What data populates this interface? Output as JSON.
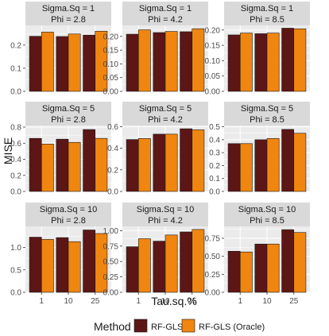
{
  "chart_data": {
    "type": "bar",
    "layout": "facet-grid-3x3",
    "xlabel": "Tau.sq.%",
    "ylabel": "MISE",
    "categories": [
      "1",
      "10",
      "25"
    ],
    "legend": {
      "title": "Method",
      "position": "bottom",
      "entries": [
        "RF-GLS",
        "RF-GLS (Oracle)"
      ]
    },
    "colors": {
      "RF-GLS": "#5c1616",
      "RF-GLS (Oracle)": "#f0860f",
      "panel_bg": "#ebebeb",
      "strip_bg": "#d9d9d9",
      "grid": "#ffffff",
      "text": "#1a1a1a",
      "tick_label": "#4d4d4d"
    },
    "grid": true,
    "panels": [
      {
        "strip": [
          "Sigma.Sq = 1",
          "Phi = 2.8"
        ],
        "ylim": [
          0,
          0.285
        ],
        "yticks": [
          0.0,
          0.1,
          0.2
        ],
        "ytick_labels": [
          "0.0",
          "0.1",
          "0.2"
        ],
        "series": [
          {
            "name": "RF-GLS",
            "values": [
              0.238,
              0.237,
              0.243
            ]
          },
          {
            "name": "RF-GLS (Oracle)",
            "values": [
              0.256,
              0.248,
              0.26
            ]
          }
        ]
      },
      {
        "strip": [
          "Sigma.Sq = 1",
          "Phi = 4.2"
        ],
        "ylim": [
          0,
          0.24
        ],
        "yticks": [
          0.0,
          0.05,
          0.1,
          0.15,
          0.2
        ],
        "ytick_labels": [
          "0.00",
          "0.05",
          "0.10",
          "0.15",
          "0.20"
        ],
        "series": [
          {
            "name": "RF-GLS",
            "values": [
              0.208,
              0.214,
              0.217
            ]
          },
          {
            "name": "RF-GLS (Oracle)",
            "values": [
              0.224,
              0.218,
              0.228
            ]
          }
        ]
      },
      {
        "strip": [
          "Sigma.Sq = 1",
          "Phi = 8.5"
        ],
        "ylim": [
          0,
          0.215
        ],
        "yticks": [
          0.0,
          0.05,
          0.1,
          0.15,
          0.2
        ],
        "ytick_labels": [
          "0.00",
          "0.05",
          "0.10",
          "0.15",
          "0.20"
        ],
        "series": [
          {
            "name": "RF-GLS",
            "values": [
              0.184,
              0.188,
              0.206
            ]
          },
          {
            "name": "RF-GLS (Oracle)",
            "values": [
              0.19,
              0.19,
              0.204
            ]
          }
        ]
      },
      {
        "strip": [
          "Sigma.Sq = 5",
          "Phi = 2.8"
        ],
        "ylim": [
          0,
          0.82
        ],
        "yticks": [
          0.0,
          0.2,
          0.4,
          0.6,
          0.8
        ],
        "ytick_labels": [
          "0.0",
          "0.2",
          "0.4",
          "0.6",
          "0.8"
        ],
        "series": [
          {
            "name": "RF-GLS",
            "values": [
              0.66,
              0.65,
              0.77
            ]
          },
          {
            "name": "RF-GLS (Oracle)",
            "values": [
              0.59,
              0.61,
              0.66
            ]
          }
        ]
      },
      {
        "strip": [
          "Sigma.Sq = 5",
          "Phi = 4.2"
        ],
        "ylim": [
          0,
          0.61
        ],
        "yticks": [
          0.0,
          0.2,
          0.4,
          0.6
        ],
        "ytick_labels": [
          "0.0",
          "0.2",
          "0.4",
          "0.6"
        ],
        "series": [
          {
            "name": "RF-GLS",
            "values": [
              0.48,
              0.53,
              0.58
            ]
          },
          {
            "name": "RF-GLS (Oracle)",
            "values": [
              0.49,
              0.53,
              0.57
            ]
          }
        ]
      },
      {
        "strip": [
          "Sigma.Sq = 5",
          "Phi = 8.5"
        ],
        "ylim": [
          0,
          0.51
        ],
        "yticks": [
          0.0,
          0.1,
          0.2,
          0.3,
          0.4,
          0.5
        ],
        "ytick_labels": [
          "0.0",
          "0.1",
          "0.2",
          "0.3",
          "0.4",
          "0.5"
        ],
        "series": [
          {
            "name": "RF-GLS",
            "values": [
              0.37,
              0.4,
              0.48
            ]
          },
          {
            "name": "RF-GLS (Oracle)",
            "values": [
              0.37,
              0.41,
              0.45
            ]
          }
        ]
      },
      {
        "strip": [
          "Sigma.Sq = 10",
          "Phi = 2.8"
        ],
        "ylim": [
          0,
          1.47
        ],
        "yticks": [
          0.0,
          0.5,
          1.0
        ],
        "ytick_labels": [
          "0.0",
          "0.5",
          "1.0"
        ],
        "series": [
          {
            "name": "RF-GLS",
            "values": [
              1.23,
              1.22,
              1.39
            ]
          },
          {
            "name": "RF-GLS (Oracle)",
            "values": [
              1.18,
              1.13,
              1.31
            ]
          }
        ]
      },
      {
        "strip": [
          "Sigma.Sq = 10",
          "Phi = 4.2"
        ],
        "ylim": [
          0,
          1.07
        ],
        "yticks": [
          0.0,
          0.25,
          0.5,
          0.75,
          1.0
        ],
        "ytick_labels": [
          "0.00",
          "0.25",
          "0.50",
          "0.75",
          "1.00"
        ],
        "series": [
          {
            "name": "RF-GLS",
            "values": [
              0.74,
              0.83,
              0.98
            ]
          },
          {
            "name": "RF-GLS (Oracle)",
            "values": [
              0.87,
              0.93,
              1.02
            ]
          }
        ]
      },
      {
        "strip": [
          "Sigma.Sq = 10",
          "Phi = 8.5"
        ],
        "ylim": [
          0,
          0.915
        ],
        "yticks": [
          0.0,
          0.25,
          0.5,
          0.75
        ],
        "ytick_labels": [
          "0.00",
          "0.25",
          "0.50",
          "0.75"
        ],
        "series": [
          {
            "name": "RF-GLS",
            "values": [
              0.57,
              0.67,
              0.87
            ]
          },
          {
            "name": "RF-GLS (Oracle)",
            "values": [
              0.56,
              0.67,
              0.83
            ]
          }
        ]
      }
    ]
  }
}
